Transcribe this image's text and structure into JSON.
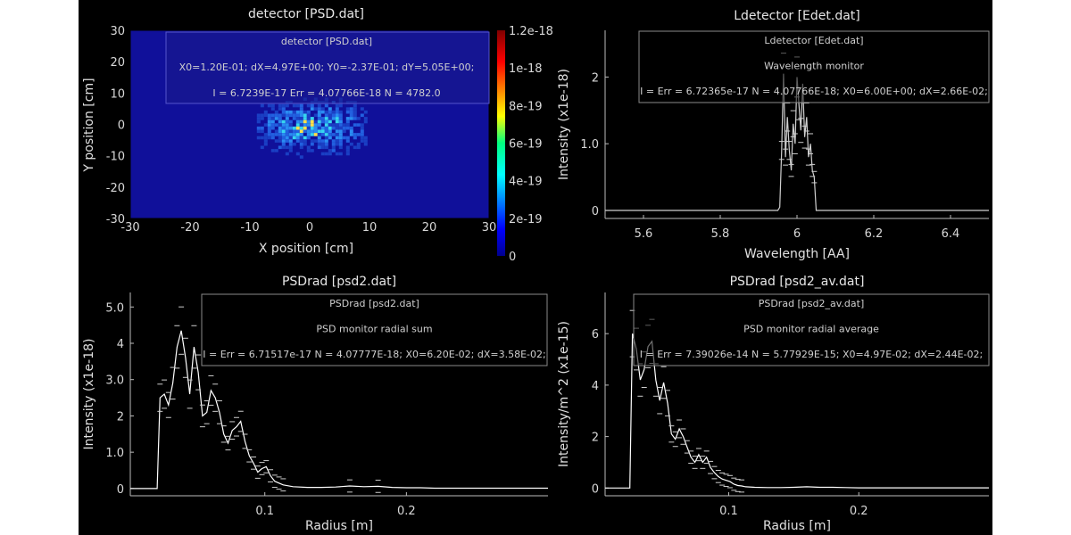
{
  "chart_data": [
    {
      "type": "heatmap",
      "title": "detector [PSD.dat]",
      "xlabel": "X position [cm]",
      "ylabel": "Y position [cm]",
      "xlim": [
        -30,
        30
      ],
      "ylim": [
        -30,
        30
      ],
      "xticks": [
        "-30",
        "-20",
        "-10",
        "0",
        "10",
        "20",
        "30"
      ],
      "yticks": [
        "30",
        "20",
        "10",
        "0",
        "-10",
        "-20",
        "-30"
      ],
      "colorbar": {
        "min": 0,
        "max": 1.2e-18,
        "ticks": [
          "1.2e-18",
          "1e-18",
          "8e-19",
          "6e-19",
          "4e-19",
          "2e-19",
          "0"
        ]
      },
      "info_lines": [
        "detector [PSD.dat]",
        "X0=1.20E-01; dX=4.97E+00; Y0=-2.37E-01; dY=5.05E+00;",
        "I = 6.7239E-17 Err = 4.07766E-18 N = 4782.0"
      ],
      "hotspot": {
        "center_x_cm": 0.12,
        "center_y_cm": -0.24,
        "sigma_x_cm": 4.97,
        "sigma_y_cm": 5.05
      },
      "colors": {
        "background": "#10109a",
        "frame": "#5555cc"
      }
    },
    {
      "type": "line",
      "title": "Ldetector [Edet.dat]",
      "xlabel": "Wavelength [AA]",
      "ylabel": "Intensity (x1e-18)",
      "xlim": [
        5.5,
        6.5
      ],
      "ylim": [
        -0.12,
        2.7
      ],
      "xticks": [
        5.6,
        5.8,
        6,
        6.2,
        6.4
      ],
      "xtick_labels": [
        "5.6",
        "5.8",
        "6",
        "6.2",
        "6.4"
      ],
      "yticks": [
        0,
        1,
        2
      ],
      "ytick_labels": [
        "0",
        "1.0",
        "2"
      ],
      "info_lines": [
        "Ldetector [Edet.dat]",
        "Wavelength monitor",
        "I = Err = 6.72365e-17 N = 4.07766E-18; X0=6.00E+00; dX=2.66E-02;"
      ],
      "x": [
        5.5,
        5.95,
        5.955,
        5.96,
        5.965,
        5.97,
        5.975,
        5.98,
        5.985,
        5.99,
        5.995,
        6.0,
        6.005,
        6.01,
        6.015,
        6.02,
        6.025,
        6.03,
        6.035,
        6.04,
        6.045,
        6.05,
        6.5
      ],
      "y": [
        0,
        0,
        0.05,
        0.9,
        2.05,
        0.8,
        1.4,
        0.9,
        0.6,
        1.3,
        1.0,
        2.0,
        1.6,
        1.2,
        1.9,
        1.1,
        1.4,
        0.8,
        1.0,
        0.6,
        0.5,
        0,
        0
      ]
    },
    {
      "type": "line",
      "title": "PSDrad [psd2.dat]",
      "xlabel": "Radius [m]",
      "ylabel": "Intensity (x1e-18)",
      "xlim": [
        0.005,
        0.3
      ],
      "ylim": [
        -0.2,
        5.4
      ],
      "xticks": [
        0.1,
        0.2
      ],
      "xtick_labels": [
        "0.1",
        "0.2"
      ],
      "yticks": [
        0,
        1,
        2,
        3,
        4,
        5
      ],
      "ytick_labels": [
        "0",
        "1.0",
        "2",
        "3.0",
        "4",
        "5.0"
      ],
      "info_lines": [
        "PSDrad [psd2.dat]",
        "PSD monitor radial sum",
        "I = Err = 6.71517e-17 N = 4.07777E-18; X0=6.20E-02; dX=3.58E-02;"
      ],
      "x": [
        0.005,
        0.024,
        0.026,
        0.029,
        0.032,
        0.035,
        0.038,
        0.041,
        0.044,
        0.047,
        0.05,
        0.053,
        0.056,
        0.059,
        0.062,
        0.065,
        0.068,
        0.071,
        0.074,
        0.077,
        0.08,
        0.083,
        0.086,
        0.089,
        0.092,
        0.095,
        0.098,
        0.101,
        0.104,
        0.107,
        0.11,
        0.113,
        0.12,
        0.13,
        0.14,
        0.15,
        0.16,
        0.17,
        0.18,
        0.19,
        0.2,
        0.21,
        0.22,
        0.25,
        0.3
      ],
      "y": [
        0,
        0,
        2.5,
        2.6,
        2.3,
        2.9,
        3.9,
        4.35,
        3.6,
        2.6,
        3.9,
        3.2,
        2.0,
        2.1,
        2.7,
        2.5,
        2.1,
        1.5,
        1.25,
        1.6,
        1.7,
        1.85,
        1.3,
        0.9,
        0.7,
        0.45,
        0.55,
        0.6,
        0.35,
        0.2,
        0.15,
        0.1,
        0.05,
        0.03,
        0.03,
        0.04,
        0.07,
        0.05,
        0.06,
        0.03,
        0.02,
        0.02,
        0.01,
        0.01,
        0.01
      ]
    },
    {
      "type": "line",
      "title": "PSDrad [psd2_av.dat]",
      "xlabel": "Radius [m]",
      "ylabel": "Intensity/m^2 (x1e-15)",
      "xlim": [
        0.005,
        0.3
      ],
      "ylim": [
        -0.3,
        7.6
      ],
      "xticks": [
        0.1,
        0.2
      ],
      "xtick_labels": [
        "0.1",
        "0.2"
      ],
      "yticks": [
        0,
        2,
        4,
        6
      ],
      "ytick_labels": [
        "0",
        "2",
        "4",
        "6"
      ],
      "info_lines": [
        "PSDrad [psd2_av.dat]",
        "PSD monitor radial average",
        "I = Err = 7.39026e-14 N = 5.77929E-15; X0=4.97E-02; dX=2.44E-02;"
      ],
      "x": [
        0.005,
        0.024,
        0.026,
        0.029,
        0.032,
        0.035,
        0.038,
        0.041,
        0.044,
        0.047,
        0.05,
        0.053,
        0.056,
        0.059,
        0.062,
        0.065,
        0.068,
        0.071,
        0.074,
        0.077,
        0.08,
        0.083,
        0.086,
        0.089,
        0.092,
        0.095,
        0.098,
        0.101,
        0.104,
        0.107,
        0.11,
        0.113,
        0.12,
        0.13,
        0.14,
        0.15,
        0.16,
        0.17,
        0.18,
        0.19,
        0.2,
        0.21,
        0.22,
        0.25,
        0.3
      ],
      "y": [
        0,
        0,
        6.0,
        5.4,
        4.2,
        4.6,
        5.5,
        5.7,
        4.2,
        3.4,
        4.1,
        3.3,
        2.1,
        1.9,
        2.3,
        2.0,
        1.6,
        1.2,
        1.0,
        1.3,
        1.0,
        1.2,
        0.8,
        0.6,
        0.45,
        0.35,
        0.3,
        0.25,
        0.15,
        0.1,
        0.08,
        0.05,
        0.03,
        0.02,
        0.02,
        0.03,
        0.05,
        0.03,
        0.03,
        0.02,
        0.01,
        0.01,
        0.01,
        0.01,
        0.01
      ]
    }
  ]
}
